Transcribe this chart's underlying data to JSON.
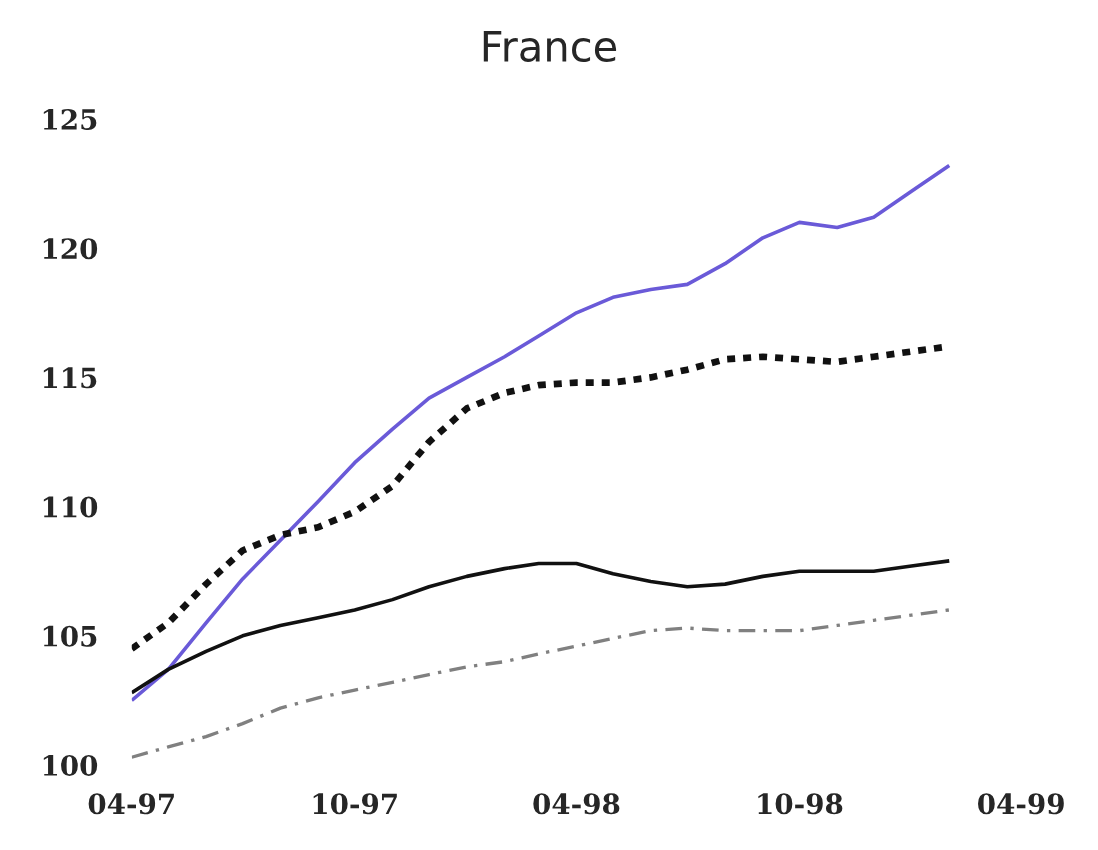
{
  "chart_data": {
    "type": "line",
    "title": "France",
    "x": [
      "1997-04",
      "1997-05",
      "1997-06",
      "1997-07",
      "1997-08",
      "1997-09",
      "1997-10",
      "1997-11",
      "1997-12",
      "1998-01",
      "1998-02",
      "1998-03",
      "1998-04",
      "1998-05",
      "1998-06",
      "1998-07",
      "1998-08",
      "1998-09",
      "1998-10",
      "1998-11",
      "1998-12",
      "1999-01",
      "1999-02"
    ],
    "series": [
      {
        "color": "#6a5ad8",
        "line_style": "solid",
        "values": [
          102.5,
          103.7,
          105.5,
          107.2,
          108.7,
          110.2,
          111.7,
          113.0,
          114.2,
          115.0,
          115.8,
          116.6,
          117.5,
          118.1,
          118.4,
          118.6,
          119.4,
          120.4,
          121.0,
          120.8,
          121.2,
          122.2,
          123.2
        ]
      },
      {
        "color": "#111111",
        "line_style": "dotted",
        "values": [
          104.5,
          105.5,
          107.0,
          108.3,
          108.9,
          109.2,
          109.8,
          110.8,
          112.5,
          113.8,
          114.4,
          114.7,
          114.8,
          114.8,
          115.0,
          115.3,
          115.7,
          115.8,
          115.7,
          115.6,
          115.8,
          116.0,
          116.2
        ]
      },
      {
        "color": "#111111",
        "line_style": "solid",
        "values": [
          102.8,
          103.7,
          104.4,
          105.0,
          105.4,
          105.7,
          106.0,
          106.4,
          106.9,
          107.3,
          107.6,
          107.8,
          107.8,
          107.4,
          107.1,
          106.9,
          107.0,
          107.3,
          107.5,
          107.5,
          107.5,
          107.7,
          107.9
        ]
      },
      {
        "color": "#808080",
        "line_style": "dashed",
        "values": [
          100.3,
          100.7,
          101.1,
          101.6,
          102.2,
          102.6,
          102.9,
          103.2,
          103.5,
          103.8,
          104.0,
          104.3,
          104.6,
          104.9,
          105.2,
          105.3,
          105.2,
          105.2,
          105.2,
          105.4,
          105.6,
          105.8,
          106.0
        ]
      }
    ],
    "xlim": [
      "1997-04",
      "1999-04"
    ],
    "xticks": [
      {
        "value": "1997-04",
        "label": "04-97"
      },
      {
        "value": "1997-10",
        "label": "10-97"
      },
      {
        "value": "1998-04",
        "label": "04-98"
      },
      {
        "value": "1998-10",
        "label": "10-98"
      },
      {
        "value": "1999-04",
        "label": "04-99"
      }
    ],
    "ylim": [
      100,
      125
    ],
    "yticks": [
      100,
      105,
      110,
      115,
      120,
      125
    ],
    "grid": false,
    "legend": false
  }
}
